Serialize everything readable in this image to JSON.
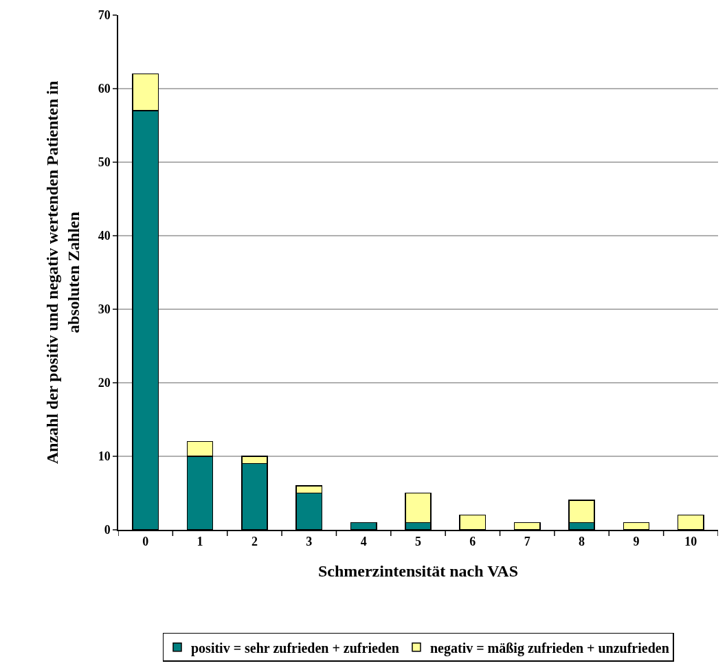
{
  "chart_data": {
    "type": "bar",
    "stacked": true,
    "xlabel": "Schmerzintensität nach VAS",
    "ylabel": "Anzahl der positiv und negativ wertenden Patienten in absoluten Zahlen",
    "categories": [
      "0",
      "1",
      "2",
      "3",
      "4",
      "5",
      "6",
      "7",
      "8",
      "9",
      "10"
    ],
    "series": [
      {
        "name": "positiv = sehr zufrieden + zufrieden",
        "color": "#008080",
        "values": [
          57,
          10,
          9,
          5,
          1,
          1,
          0,
          0,
          1,
          0,
          0
        ]
      },
      {
        "name": "negativ = mäßig zufrieden + unzufrieden",
        "color": "#ffff99",
        "values": [
          5,
          2,
          1,
          1,
          0,
          4,
          2,
          1,
          3,
          1,
          2
        ]
      }
    ],
    "ylim": [
      0,
      70
    ],
    "yticks": [
      0,
      10,
      20,
      30,
      40,
      50,
      60,
      70
    ],
    "grid": "y",
    "legend": "bottom"
  }
}
